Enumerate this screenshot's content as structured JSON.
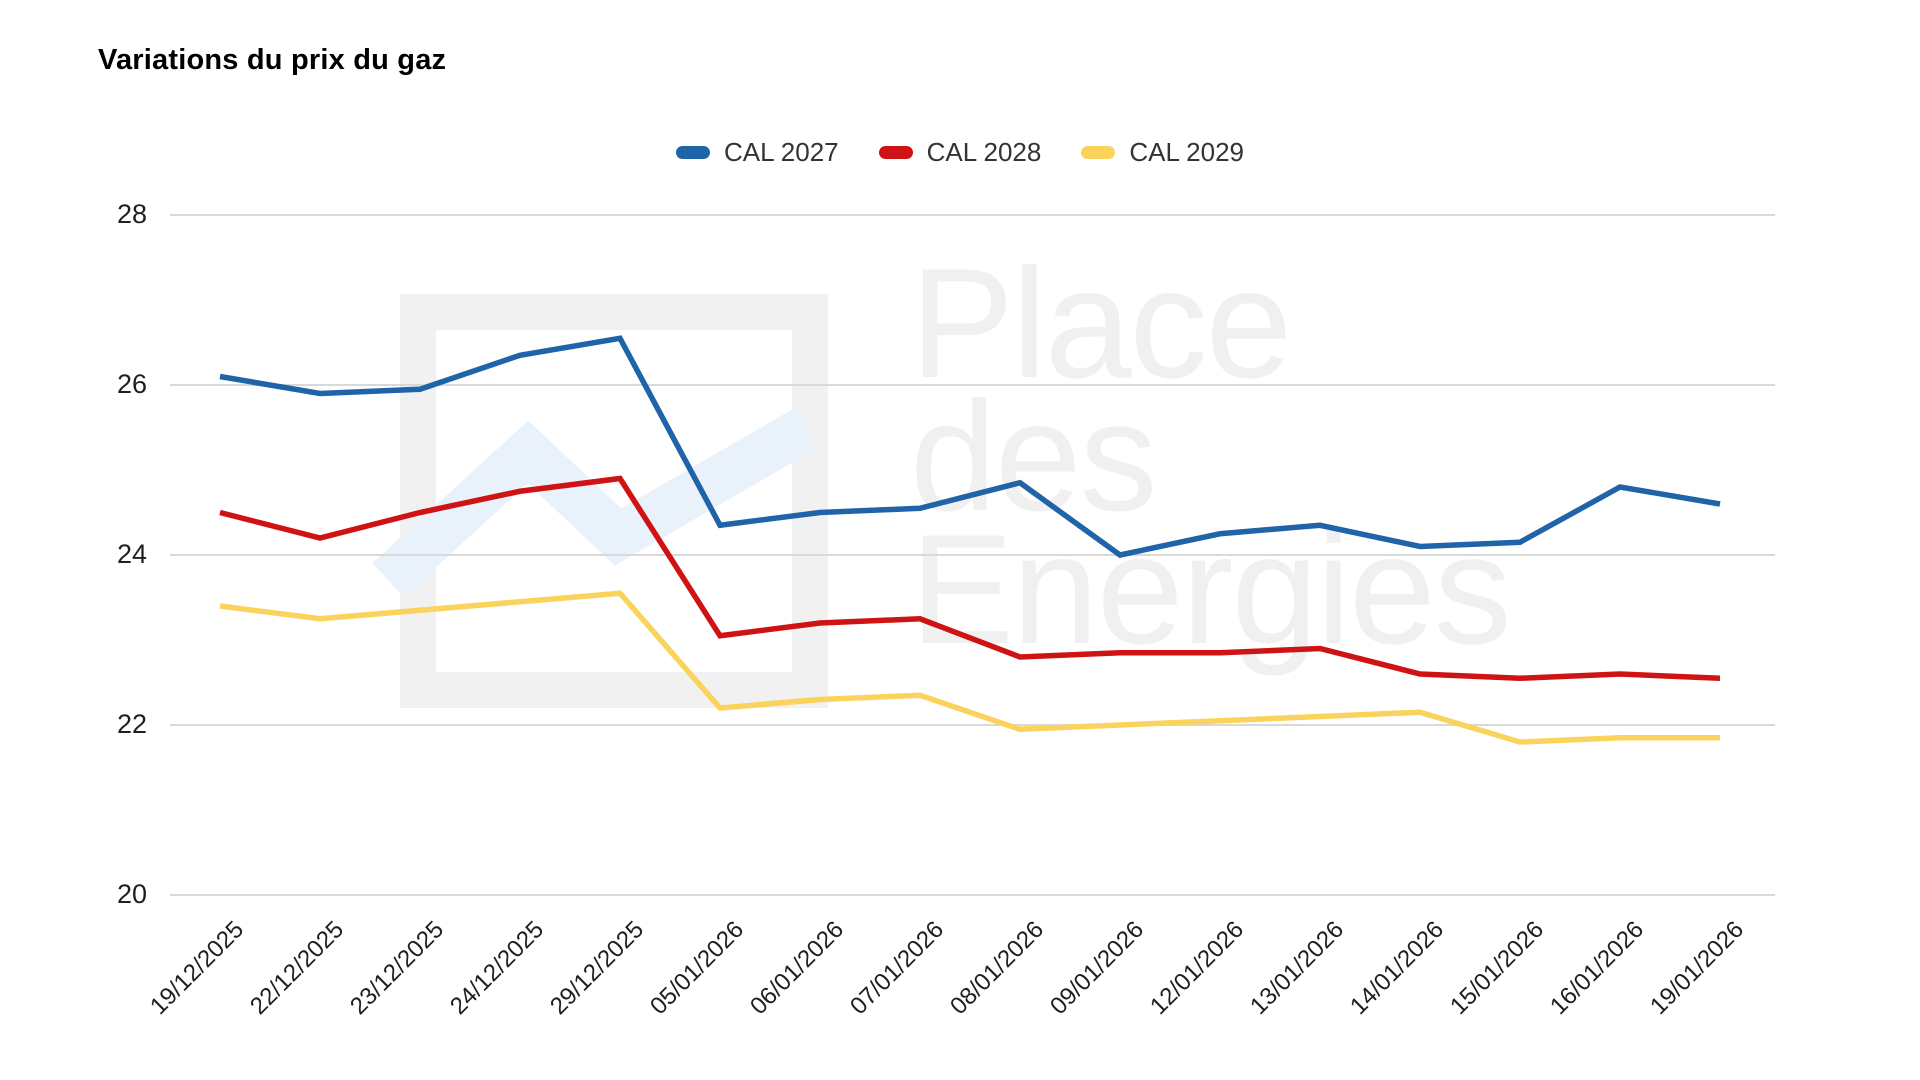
{
  "chart_data": {
    "type": "line",
    "title": "Variations du prix du gaz",
    "categories": [
      "19/12/2025",
      "22/12/2025",
      "23/12/2025",
      "24/12/2025",
      "29/12/2025",
      "05/01/2026",
      "06/01/2026",
      "07/01/2026",
      "08/01/2026",
      "09/01/2026",
      "12/01/2026",
      "13/01/2026",
      "14/01/2026",
      "15/01/2026",
      "16/01/2026",
      "19/01/2026"
    ],
    "series": [
      {
        "name": "CAL 2027",
        "color": "#1f63a8",
        "values": [
          26.1,
          25.9,
          25.95,
          26.35,
          26.55,
          24.35,
          24.5,
          24.55,
          24.85,
          24.0,
          24.25,
          24.35,
          24.1,
          24.15,
          24.8,
          24.6
        ]
      },
      {
        "name": "CAL 2028",
        "color": "#cf1213",
        "values": [
          24.5,
          24.2,
          24.5,
          24.75,
          24.9,
          23.05,
          23.2,
          23.25,
          22.8,
          22.85,
          22.85,
          22.9,
          22.6,
          22.55,
          22.6,
          22.55
        ]
      },
      {
        "name": "CAL 2029",
        "color": "#fad35c",
        "values": [
          23.4,
          23.25,
          23.35,
          23.45,
          23.55,
          22.2,
          22.3,
          22.35,
          21.95,
          22.0,
          22.05,
          22.1,
          22.15,
          21.8,
          21.85,
          21.85
        ]
      }
    ],
    "xlabel": "",
    "ylabel": "",
    "ylim": [
      20,
      28
    ],
    "yticks": [
      28,
      26,
      24,
      22,
      20
    ],
    "grid": true,
    "legend_position": "top"
  },
  "watermark": {
    "lines": [
      "Place",
      "des",
      "Energies"
    ]
  },
  "colors": {
    "background": "#ffffff",
    "gridline": "#d9d9d9",
    "axis_text": "#1f1f1f",
    "title_text": "#000000",
    "legend_text": "#333333",
    "watermark_text": "#f0f0f0",
    "watermark_logo": "#f1f1f1",
    "watermark_zigzag": "#e9f1fb"
  }
}
